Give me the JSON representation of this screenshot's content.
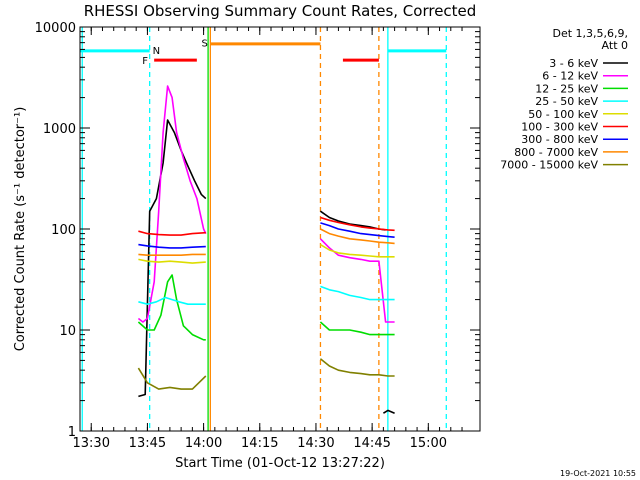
{
  "chart_data": {
    "type": "line",
    "title": "RHESSI Observing Summary Count Rates, Corrected",
    "xlabel": "Start Time (01-Oct-12 13:27:22)",
    "ylabel": "Corrected Count Rate (s⁻¹ detector⁻¹)",
    "ylog": true,
    "ylim": [
      1,
      10000
    ],
    "xlim_minutes": [
      13.45,
      15.23
    ],
    "x_ticks": [
      {
        "v": 13.5,
        "label": "13:30"
      },
      {
        "v": 13.75,
        "label": "13:45"
      },
      {
        "v": 14.0,
        "label": "14:00"
      },
      {
        "v": 14.25,
        "label": "14:15"
      },
      {
        "v": 14.5,
        "label": "14:30"
      },
      {
        "v": 14.75,
        "label": "14:45"
      },
      {
        "v": 15.0,
        "label": "15:00"
      }
    ],
    "y_ticks": [
      {
        "v": 1,
        "label": "1"
      },
      {
        "v": 10,
        "label": "10"
      },
      {
        "v": 100,
        "label": "100"
      },
      {
        "v": 1000,
        "label": "1000"
      },
      {
        "v": 10000,
        "label": "10000"
      }
    ],
    "legend_header": [
      "Det 1,3,5,6,9,",
      "Att 0"
    ],
    "legend_position": "right",
    "timestamp": "19-Oct-2021 10:55",
    "series": [
      {
        "name": "3 - 6 keV",
        "color": "#000000",
        "segments": [
          {
            "x": [
              13.71,
              13.74,
              13.76,
              13.79,
              13.82,
              13.84,
              13.87,
              13.9,
              13.93,
              13.96,
              13.99,
              14.01
            ],
            "y": [
              2.2,
              2.3,
              150,
              200,
              450,
              1200,
              900,
              600,
              420,
              300,
              220,
              200
            ]
          },
          {
            "x": [
              14.52,
              14.56,
              14.6,
              14.65,
              14.7,
              14.74,
              14.78,
              14.81
            ],
            "y": [
              150,
              130,
              120,
              112,
              108,
              105,
              100,
              98
            ]
          },
          {
            "x": [
              14.8,
              14.82,
              14.85
            ],
            "y": [
              1.5,
              1.6,
              1.5
            ]
          }
        ]
      },
      {
        "name": "6 - 12 keV",
        "color": "#ff00ff",
        "segments": [
          {
            "x": [
              13.71,
              13.73,
              13.75,
              13.78,
              13.8,
              13.82,
              13.84,
              13.86,
              13.88,
              13.91,
              13.94,
              13.97,
              14.0,
              14.01
            ],
            "y": [
              13,
              12,
              13,
              30,
              150,
              900,
              2600,
              2000,
              900,
              500,
              300,
              200,
              100,
              90
            ]
          },
          {
            "x": [
              14.52,
              14.56,
              14.6,
              14.65,
              14.7,
              14.74,
              14.78,
              14.81,
              14.85
            ],
            "y": [
              80,
              65,
              55,
              52,
              50,
              48,
              48,
              12,
              12
            ]
          }
        ]
      },
      {
        "name": "12 - 25 keV",
        "color": "#00dd00",
        "segments": [
          {
            "x": [
              13.71,
              13.75,
              13.78,
              13.81,
              13.84,
              13.86,
              13.88,
              13.91,
              13.95,
              14.0,
              14.01
            ],
            "y": [
              12,
              10,
              10,
              14,
              30,
              35,
              20,
              11,
              9,
              8,
              8
            ]
          },
          {
            "x": [
              14.52,
              14.56,
              14.6,
              14.65,
              14.7,
              14.74,
              14.78,
              14.82,
              14.85
            ],
            "y": [
              12,
              10,
              10,
              10,
              9.5,
              9,
              9,
              9,
              9
            ]
          }
        ]
      },
      {
        "name": "25 - 50 keV",
        "color": "#00ffff",
        "segments": [
          {
            "x": [
              13.71,
              13.75,
              13.79,
              13.83,
              13.86,
              13.89,
              13.93,
              13.97,
              14.01
            ],
            "y": [
              19,
              18,
              19,
              21,
              20,
              19,
              18,
              18,
              18
            ]
          },
          {
            "x": [
              14.52,
              14.56,
              14.6,
              14.65,
              14.7,
              14.74,
              14.78,
              14.82,
              14.85
            ],
            "y": [
              27,
              25,
              24,
              22,
              21,
              20,
              20,
              20,
              20
            ]
          }
        ]
      },
      {
        "name": "50 - 100 keV",
        "color": "#dddd00",
        "segments": [
          {
            "x": [
              13.71,
              13.75,
              13.8,
              13.85,
              13.9,
              13.95,
              14.01
            ],
            "y": [
              50,
              48,
              47,
              48,
              47,
              46,
              47
            ]
          },
          {
            "x": [
              14.52,
              14.56,
              14.6,
              14.65,
              14.7,
              14.74,
              14.78,
              14.82,
              14.85
            ],
            "y": [
              70,
              62,
              58,
              56,
              55,
              54,
              53,
              53,
              53
            ]
          }
        ]
      },
      {
        "name": "100 - 300 keV",
        "color": "#ff0000",
        "segments": [
          {
            "x": [
              13.71,
              13.75,
              13.8,
              13.85,
              13.9,
              13.95,
              14.01
            ],
            "y": [
              95,
              90,
              88,
              87,
              87,
              90,
              92
            ]
          },
          {
            "x": [
              14.52,
              14.56,
              14.6,
              14.65,
              14.7,
              14.74,
              14.78,
              14.82,
              14.85
            ],
            "y": [
              130,
              122,
              116,
              110,
              105,
              102,
              100,
              98,
              97
            ]
          }
        ]
      },
      {
        "name": "300 - 800 keV",
        "color": "#0000ff",
        "segments": [
          {
            "x": [
              13.71,
              13.75,
              13.8,
              13.85,
              13.9,
              13.95,
              14.01
            ],
            "y": [
              70,
              68,
              66,
              65,
              65,
              66,
              67
            ]
          },
          {
            "x": [
              14.52,
              14.56,
              14.6,
              14.65,
              14.7,
              14.74,
              14.78,
              14.82,
              14.85
            ],
            "y": [
              115,
              108,
              100,
              95,
              90,
              88,
              86,
              84,
              83
            ]
          }
        ]
      },
      {
        "name": "800 - 7000 keV",
        "color": "#ff8800",
        "segments": [
          {
            "x": [
              13.71,
              13.75,
              13.8,
              13.85,
              13.9,
              13.95,
              14.01
            ],
            "y": [
              56,
              55,
              55,
              55,
              55,
              56,
              56
            ]
          },
          {
            "x": [
              14.52,
              14.56,
              14.6,
              14.65,
              14.7,
              14.74,
              14.78,
              14.82,
              14.85
            ],
            "y": [
              100,
              90,
              85,
              80,
              78,
              76,
              74,
              73,
              72
            ]
          }
        ]
      },
      {
        "name": "7000 - 15000 keV",
        "color": "#808000",
        "segments": [
          {
            "x": [
              13.71,
              13.75,
              13.8,
              13.85,
              13.9,
              13.95,
              14.01
            ],
            "y": [
              4.2,
              3,
              2.6,
              2.7,
              2.6,
              2.6,
              3.5
            ]
          },
          {
            "x": [
              14.52,
              14.56,
              14.6,
              14.65,
              14.7,
              14.74,
              14.78,
              14.82,
              14.85
            ],
            "y": [
              5.2,
              4.4,
              4.0,
              3.8,
              3.7,
              3.6,
              3.6,
              3.5,
              3.5
            ]
          }
        ]
      }
    ],
    "spans": [
      {
        "flag": "cyan",
        "color": "#00ffff",
        "x": [
          13.45,
          13.76
        ],
        "y": 5800
      },
      {
        "flag": "F",
        "color": "#ff0000",
        "x": [
          13.78,
          13.97
        ],
        "y": 4700,
        "label": "F"
      },
      {
        "flag": "S",
        "color": "#ff8800",
        "x": [
          14.03,
          14.52
        ],
        "y": 6800,
        "label": "S"
      },
      {
        "flag": "F",
        "color": "#ff0000",
        "x": [
          14.62,
          14.78
        ],
        "y": 4700
      },
      {
        "flag": "cyan",
        "color": "#00ffff",
        "x": [
          14.82,
          15.08
        ],
        "y": 5800
      }
    ],
    "flag_labels": [
      {
        "text": "N",
        "color": "#00ffff",
        "x": 13.79,
        "y": 5900
      },
      {
        "text": "F",
        "color": "#ff0000",
        "x": 13.74,
        "y": 4700
      },
      {
        "text": "S",
        "color": "#ff8800",
        "x": 14.005,
        "y": 7000
      }
    ],
    "vlines": [
      {
        "x": 13.46,
        "color": "#00ffff",
        "dash": false
      },
      {
        "x": 13.76,
        "color": "#00ffff",
        "dash": true
      },
      {
        "x": 14.02,
        "color": "#00dd00",
        "dash": false
      },
      {
        "x": 14.03,
        "color": "#ff8800",
        "dash": false
      },
      {
        "x": 14.52,
        "color": "#ff8800",
        "dash": true
      },
      {
        "x": 14.78,
        "color": "#ff8800",
        "dash": true
      },
      {
        "x": 14.82,
        "color": "#00ffff",
        "dash": false
      },
      {
        "x": 15.08,
        "color": "#00ffff",
        "dash": true
      }
    ]
  }
}
